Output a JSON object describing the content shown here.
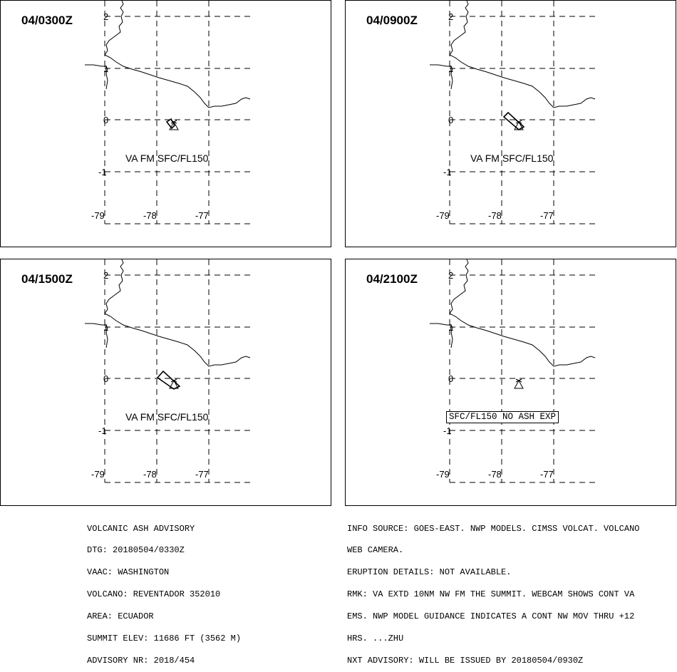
{
  "panels": [
    {
      "time": "04/0300Z",
      "label": "VA FM SFC/FL150",
      "ash": "small"
    },
    {
      "time": "04/0900Z",
      "label": "VA FM SFC/FL150",
      "ash": "medium"
    },
    {
      "time": "04/1500Z",
      "label": "VA FM SFC/FL150",
      "ash": "large"
    },
    {
      "time": "04/2100Z",
      "label": "SFC/FL150 NO ASH EXP",
      "ash": "none"
    }
  ],
  "map": {
    "lat_labels": [
      "2",
      "1",
      "0",
      "-1"
    ],
    "lon_labels": [
      "-79",
      "-78",
      "-77"
    ]
  },
  "advisory_left": [
    "VOLCANIC ASH ADVISORY",
    "DTG: 20180504/0330Z",
    "VAAC: WASHINGTON",
    "VOLCANO: REVENTADOR 352010",
    "AREA: ECUADOR",
    "SUMMIT ELEV: 11686 FT (3562 M)",
    "ADVISORY NR: 2018/454"
  ],
  "advisory_right": [
    "INFO SOURCE: GOES-EAST. NWP MODELS. CIMSS VOLCAT. VOLCANO",
    "WEB CAMERA.",
    "ERUPTION DETAILS: NOT AVAILABLE.",
    "RMK: VA EXTD 10NM NW FM THE SUMMIT. WEBCAM SHOWS CONT VA",
    "EMS. NWP MODEL GUIDANCE INDICATES A CONT NW MOV THRU +12",
    "HRS. ...ZHU",
    "NXT ADVISORY: WILL BE ISSUED BY 20180504/0930Z"
  ]
}
